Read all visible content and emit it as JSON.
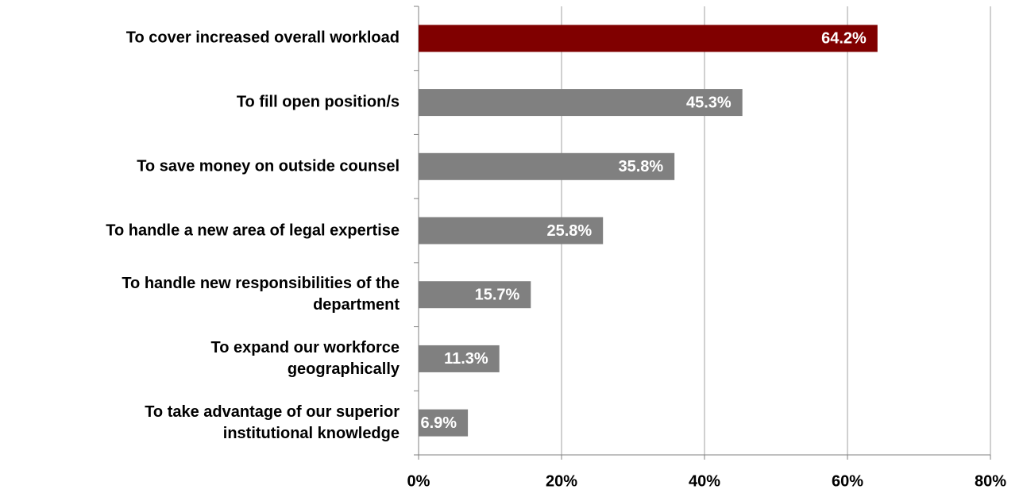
{
  "chart_data": {
    "type": "bar",
    "orientation": "horizontal",
    "categories": [
      "To cover increased overall workload",
      "To fill open position/s",
      "To save money on outside counsel",
      "To handle a new area of legal expertise",
      "To handle new responsibilities of the\ndepartment",
      "To expand our workforce\ngeographically",
      "To take advantage of our superior\ninstitutional knowledge"
    ],
    "values": [
      64.2,
      45.3,
      35.8,
      25.8,
      15.7,
      11.3,
      6.9
    ],
    "value_labels": [
      "64.2%",
      "45.3%",
      "35.8%",
      "25.8%",
      "15.7%",
      "11.3%",
      "6.9%"
    ],
    "colors": [
      "#800000",
      "#808080",
      "#808080",
      "#808080",
      "#808080",
      "#808080",
      "#808080"
    ],
    "xlim": [
      0,
      80
    ],
    "xticks": [
      {
        "value": 0,
        "label": "0%"
      },
      {
        "value": 20,
        "label": "20%"
      },
      {
        "value": 40,
        "label": "40%"
      },
      {
        "value": 60,
        "label": "60%"
      },
      {
        "value": 80,
        "label": "80%"
      }
    ],
    "grid": true
  }
}
